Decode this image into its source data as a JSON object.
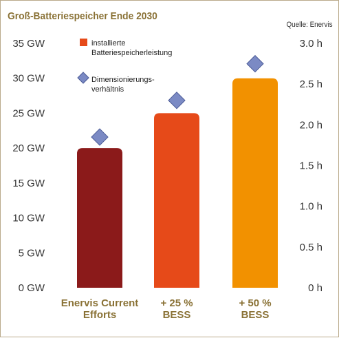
{
  "title": "Groß-Batteriespeicher Ende 2030",
  "source": "Quelle: Enervis",
  "chart_data": {
    "type": "bar",
    "categories": [
      [
        "Enervis Current",
        "Efforts"
      ],
      [
        "+ 25 %",
        "BESS"
      ],
      [
        "+ 50 %",
        "BESS"
      ]
    ],
    "series": [
      {
        "name": "installierte Batteriespeicherleistung",
        "values": [
          20,
          25,
          30
        ],
        "unit": "GW",
        "axis": "left",
        "colors": [
          "#8b1a1a",
          "#e64a19",
          "#f29100"
        ]
      },
      {
        "name": "Dimensionierungsverhältnis",
        "values": [
          1.85,
          2.3,
          2.75
        ],
        "unit": "h",
        "axis": "right",
        "marker": "diamond",
        "color": "#7b8ac4"
      }
    ],
    "legend": [
      {
        "lines": [
          "installierte",
          "Batteriespeicherleistung"
        ],
        "symbol": "square",
        "color": "#e64a19"
      },
      {
        "lines": [
          "Dimensionierungs-",
          "verhältnis"
        ],
        "symbol": "diamond",
        "color": "#7b8ac4"
      }
    ],
    "yleft": {
      "ticks": [
        "0 GW",
        "5 GW",
        "10 GW",
        "15 GW",
        "20 GW",
        "25 GW",
        "30 GW",
        "35 GW"
      ],
      "range": [
        0,
        35
      ]
    },
    "yright": {
      "ticks": [
        "0 h",
        "0.5 h",
        "1.0 h",
        "1.5 h",
        "2.0 h",
        "2.5 h",
        "3.0 h"
      ],
      "range": [
        0,
        3
      ]
    },
    "grid": false,
    "legend_position": "top-left"
  }
}
